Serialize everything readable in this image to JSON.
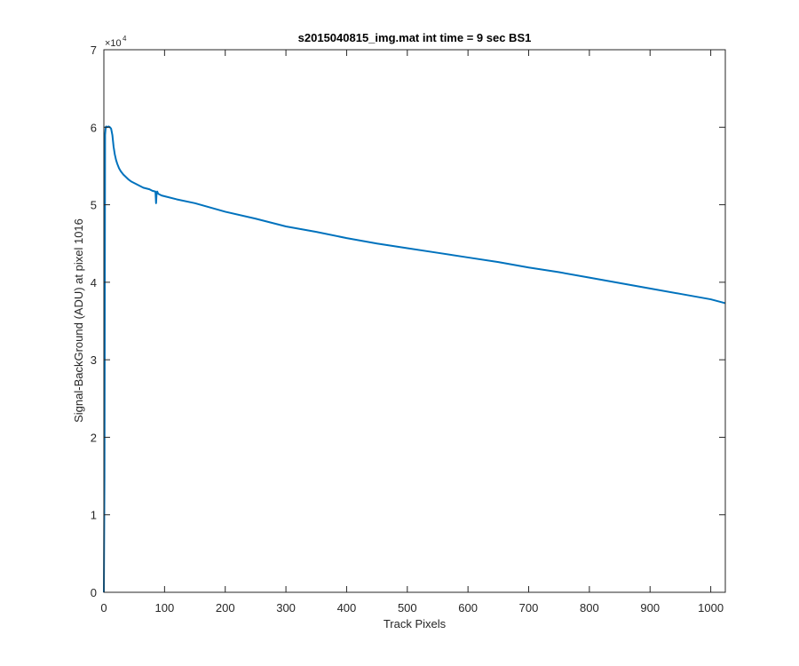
{
  "chart_data": {
    "type": "line",
    "title": "s2015040815_img.mat int time = 9 sec   BS1",
    "xlabel": "Track Pixels",
    "ylabel": "Signal-BackGround (ADU) at pixel 1016",
    "xlim": [
      0,
      1024
    ],
    "ylim": [
      0,
      70000
    ],
    "x_ticks": [
      0,
      100,
      200,
      300,
      400,
      500,
      600,
      700,
      800,
      900,
      1000
    ],
    "x_tick_labels": [
      "0",
      "100",
      "200",
      "300",
      "400",
      "500",
      "600",
      "700",
      "800",
      "900",
      "1000"
    ],
    "y_ticks": [
      0,
      10000,
      20000,
      30000,
      40000,
      50000,
      60000,
      70000
    ],
    "y_tick_labels": [
      "0",
      "1",
      "2",
      "3",
      "4",
      "5",
      "6",
      "7"
    ],
    "y_exponent_label": "×10",
    "y_exponent_power": "4",
    "grid": false,
    "line_color": "#0072BD",
    "series": [
      {
        "x": [
          0,
          1,
          2,
          3,
          4,
          5,
          8,
          10,
          12,
          14,
          16,
          18,
          20,
          22,
          25,
          28,
          32,
          36,
          40,
          45,
          50,
          55,
          60,
          65,
          70,
          75,
          80,
          85,
          86,
          87,
          88,
          89,
          90,
          95,
          100,
          120,
          150,
          200,
          250,
          300,
          350,
          400,
          450,
          500,
          550,
          600,
          650,
          700,
          750,
          800,
          850,
          900,
          950,
          1000,
          1024
        ],
        "y": [
          0,
          15000,
          59000,
          60000,
          60100,
          60000,
          60100,
          60000,
          59800,
          59000,
          57500,
          56500,
          55800,
          55300,
          54700,
          54300,
          53900,
          53600,
          53300,
          53000,
          52800,
          52600,
          52400,
          52200,
          52100,
          52000,
          51800,
          51700,
          50200,
          51600,
          51700,
          51500,
          51400,
          51200,
          51100,
          50700,
          50200,
          49100,
          48200,
          47200,
          46500,
          45700,
          45000,
          44400,
          43800,
          43200,
          42600,
          41900,
          41300,
          40600,
          39900,
          39200,
          38500,
          37800,
          37300
        ]
      }
    ]
  }
}
